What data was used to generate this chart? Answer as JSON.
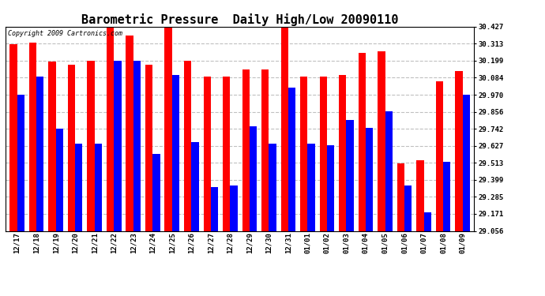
{
  "title": "Barometric Pressure  Daily High/Low 20090110",
  "copyright": "Copyright 2009 Cartronics.com",
  "labels": [
    "12/17",
    "12/18",
    "12/19",
    "12/20",
    "12/21",
    "12/22",
    "12/23",
    "12/24",
    "12/25",
    "12/26",
    "12/27",
    "12/28",
    "12/29",
    "12/30",
    "12/31",
    "01/01",
    "01/02",
    "01/03",
    "01/04",
    "01/05",
    "01/06",
    "01/07",
    "01/08",
    "01/09"
  ],
  "highs": [
    30.31,
    30.32,
    30.19,
    30.17,
    30.2,
    30.43,
    30.37,
    30.17,
    30.43,
    30.2,
    30.09,
    30.09,
    30.14,
    30.14,
    30.43,
    30.09,
    30.09,
    30.1,
    30.25,
    30.26,
    29.51,
    29.53,
    30.06,
    30.13
  ],
  "lows": [
    29.97,
    30.09,
    29.74,
    29.64,
    29.64,
    30.2,
    30.2,
    29.57,
    30.1,
    29.65,
    29.35,
    29.36,
    29.76,
    29.64,
    30.02,
    29.64,
    29.63,
    29.8,
    29.75,
    29.86,
    29.36,
    29.18,
    29.52,
    29.97
  ],
  "bar_color_high": "#FF0000",
  "bar_color_low": "#0000FF",
  "bg_color": "#FFFFFF",
  "grid_color": "#C0C0C0",
  "yticks": [
    29.056,
    29.171,
    29.285,
    29.399,
    29.513,
    29.627,
    29.742,
    29.856,
    29.97,
    30.084,
    30.199,
    30.313,
    30.427
  ],
  "ymin": 29.056,
  "ymax": 30.427,
  "bar_width": 0.38,
  "title_fontsize": 11,
  "tick_fontsize": 6.5,
  "copyright_fontsize": 6
}
